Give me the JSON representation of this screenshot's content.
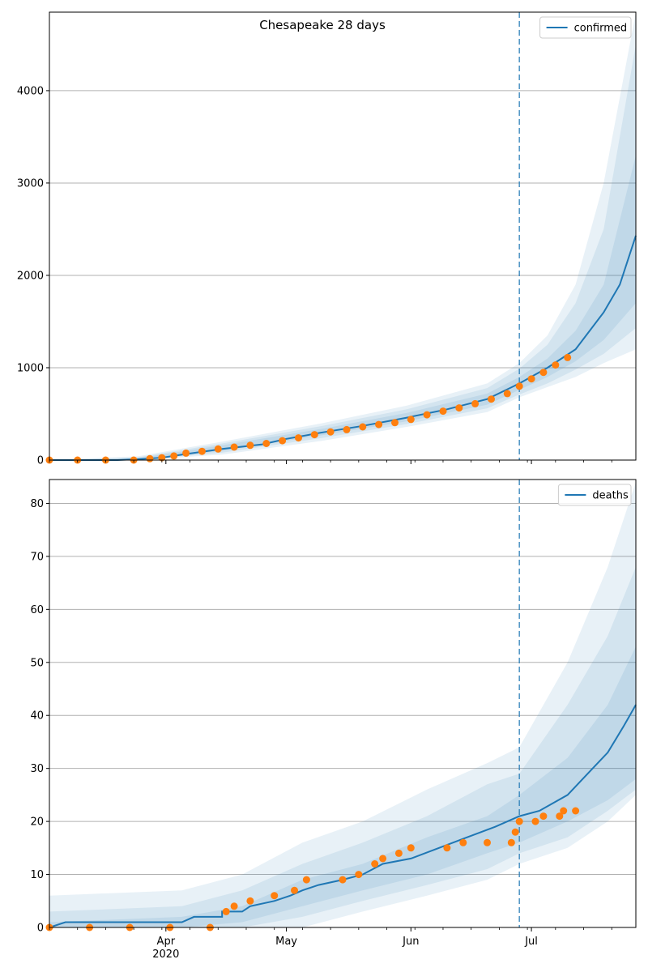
{
  "figure": {
    "title": "Chesapeake 28 days"
  },
  "colors": {
    "model": "#1f77b4",
    "observed": "#ff7f0e",
    "band": "#1f77b4",
    "grid": "#b0b0b0",
    "forecast_line": "#1f77b4"
  },
  "chart_data": [
    {
      "type": "line",
      "name": "confirmed-panel",
      "legend": [
        "confirmed"
      ],
      "legend_position": "top-right",
      "grid": "horizontal",
      "x_axis": {
        "type": "date",
        "range": [
          "2020-03-03",
          "2020-07-27"
        ],
        "ticks": [
          {
            "date": "2020-04-01",
            "label": "Apr"
          },
          {
            "date": "2020-05-01",
            "label": "May"
          },
          {
            "date": "2020-06-01",
            "label": "Jun"
          },
          {
            "date": "2020-07-01",
            "label": "Jul"
          }
        ],
        "year_label": "2020",
        "show_tick_labels": false
      },
      "y_axis": {
        "range": [
          0,
          4850
        ],
        "ticks": [
          0,
          1000,
          2000,
          3000,
          4000
        ]
      },
      "forecast_start": "2020-06-28",
      "series": [
        {
          "name": "confirmed",
          "kind": "model-median",
          "points": [
            [
              "2020-03-03",
              0
            ],
            [
              "2020-03-20",
              0
            ],
            [
              "2020-03-25",
              10
            ],
            [
              "2020-03-31",
              25
            ],
            [
              "2020-04-05",
              60
            ],
            [
              "2020-04-15",
              120
            ],
            [
              "2020-04-25",
              170
            ],
            [
              "2020-05-01",
              230
            ],
            [
              "2020-05-10",
              300
            ],
            [
              "2020-05-20",
              370
            ],
            [
              "2020-05-31",
              460
            ],
            [
              "2020-06-10",
              550
            ],
            [
              "2020-06-20",
              660
            ],
            [
              "2020-06-28",
              830
            ],
            [
              "2020-07-05",
              1000
            ],
            [
              "2020-07-12",
              1200
            ],
            [
              "2020-07-19",
              1600
            ],
            [
              "2020-07-23",
              1900
            ],
            [
              "2020-07-27",
              2430
            ]
          ]
        },
        {
          "name": "bands",
          "kind": "model-intervals",
          "levels": [
            {
              "points": [
                [
                  "2020-03-03",
                  0,
                  0
                ],
                [
                  "2020-03-25",
                  0,
                  20
                ],
                [
                  "2020-04-15",
                  100,
                  160
                ],
                [
                  "2020-05-10",
                  270,
                  340
                ],
                [
                  "2020-05-31",
                  420,
                  510
                ],
                [
                  "2020-06-20",
                  600,
                  720
                ],
                [
                  "2020-06-28",
                  760,
                  900
                ],
                [
                  "2020-07-05",
                  900,
                  1100
                ],
                [
                  "2020-07-12",
                  1070,
                  1400
                ],
                [
                  "2020-07-19",
                  1300,
                  1900
                ],
                [
                  "2020-07-27",
                  1700,
                  3300
                ]
              ]
            },
            {
              "points": [
                [
                  "2020-03-03",
                  0,
                  0
                ],
                [
                  "2020-03-25",
                  0,
                  30
                ],
                [
                  "2020-04-15",
                  80,
                  180
                ],
                [
                  "2020-05-10",
                  240,
                  370
                ],
                [
                  "2020-05-31",
                  390,
                  550
                ],
                [
                  "2020-06-20",
                  560,
                  780
                ],
                [
                  "2020-06-28",
                  710,
                  990
                ],
                [
                  "2020-07-05",
                  830,
                  1250
                ],
                [
                  "2020-07-12",
                  980,
                  1700
                ],
                [
                  "2020-07-19",
                  1150,
                  2500
                ],
                [
                  "2020-07-27",
                  1430,
                  4500
                ]
              ]
            },
            {
              "points": [
                [
                  "2020-03-03",
                  0,
                  0
                ],
                [
                  "2020-03-25",
                  0,
                  40
                ],
                [
                  "2020-04-15",
                  60,
                  200
                ],
                [
                  "2020-05-10",
                  210,
                  400
                ],
                [
                  "2020-05-31",
                  360,
                  590
                ],
                [
                  "2020-06-20",
                  520,
                  830
                ],
                [
                  "2020-06-28",
                  680,
                  1050
                ],
                [
                  "2020-07-05",
                  790,
                  1350
                ],
                [
                  "2020-07-12",
                  900,
                  1900
                ],
                [
                  "2020-07-19",
                  1050,
                  3000
                ],
                [
                  "2020-07-27",
                  1200,
                  4850
                ]
              ]
            }
          ]
        },
        {
          "name": "confirmed observed",
          "kind": "observed",
          "points": [
            [
              "2020-03-03",
              0
            ],
            [
              "2020-03-10",
              0
            ],
            [
              "2020-03-17",
              0
            ],
            [
              "2020-03-24",
              0
            ],
            [
              "2020-03-28",
              15
            ],
            [
              "2020-03-31",
              25
            ],
            [
              "2020-04-03",
              45
            ],
            [
              "2020-04-06",
              75
            ],
            [
              "2020-04-10",
              95
            ],
            [
              "2020-04-14",
              120
            ],
            [
              "2020-04-18",
              140
            ],
            [
              "2020-04-22",
              160
            ],
            [
              "2020-04-26",
              180
            ],
            [
              "2020-04-30",
              210
            ],
            [
              "2020-05-04",
              240
            ],
            [
              "2020-05-08",
              275
            ],
            [
              "2020-05-12",
              305
            ],
            [
              "2020-05-16",
              330
            ],
            [
              "2020-05-20",
              360
            ],
            [
              "2020-05-24",
              385
            ],
            [
              "2020-05-28",
              405
            ],
            [
              "2020-06-01",
              440
            ],
            [
              "2020-06-05",
              490
            ],
            [
              "2020-06-09",
              530
            ],
            [
              "2020-06-13",
              565
            ],
            [
              "2020-06-17",
              610
            ],
            [
              "2020-06-21",
              660
            ],
            [
              "2020-06-25",
              720
            ],
            [
              "2020-06-28",
              800
            ],
            [
              "2020-07-01",
              880
            ],
            [
              "2020-07-04",
              950
            ],
            [
              "2020-07-07",
              1030
            ],
            [
              "2020-07-10",
              1110
            ]
          ]
        }
      ]
    },
    {
      "type": "line",
      "name": "deaths-panel",
      "legend": [
        "deaths"
      ],
      "legend_position": "top-right",
      "grid": "horizontal",
      "x_axis": {
        "type": "date",
        "range": [
          "2020-03-03",
          "2020-07-27"
        ],
        "ticks": [
          {
            "date": "2020-04-01",
            "label": "Apr"
          },
          {
            "date": "2020-05-01",
            "label": "May"
          },
          {
            "date": "2020-06-01",
            "label": "Jun"
          },
          {
            "date": "2020-07-01",
            "label": "Jul"
          }
        ],
        "year_label": "2020",
        "show_tick_labels": true
      },
      "y_axis": {
        "range": [
          0,
          84.5
        ],
        "ticks": [
          0,
          10,
          20,
          30,
          40,
          50,
          60,
          70,
          80
        ]
      },
      "forecast_start": "2020-06-28",
      "series": [
        {
          "name": "deaths",
          "kind": "model-median",
          "points": [
            [
              "2020-03-03",
              0
            ],
            [
              "2020-03-07",
              1
            ],
            [
              "2020-04-05",
              1
            ],
            [
              "2020-04-08",
              2
            ],
            [
              "2020-04-15",
              2
            ],
            [
              "2020-04-15",
              3
            ],
            [
              "2020-04-20",
              3
            ],
            [
              "2020-04-22",
              4
            ],
            [
              "2020-04-28",
              5
            ],
            [
              "2020-05-02",
              6
            ],
            [
              "2020-05-05",
              7
            ],
            [
              "2020-05-09",
              8
            ],
            [
              "2020-05-15",
              9
            ],
            [
              "2020-05-20",
              10
            ],
            [
              "2020-05-25",
              12
            ],
            [
              "2020-06-01",
              13
            ],
            [
              "2020-06-08",
              15
            ],
            [
              "2020-06-15",
              17
            ],
            [
              "2020-06-22",
              19
            ],
            [
              "2020-06-28",
              21
            ],
            [
              "2020-07-03",
              22
            ],
            [
              "2020-07-10",
              25
            ],
            [
              "2020-07-15",
              29
            ],
            [
              "2020-07-20",
              33
            ],
            [
              "2020-07-24",
              38
            ],
            [
              "2020-07-27",
              42
            ]
          ]
        },
        {
          "name": "bands",
          "kind": "model-intervals",
          "levels": [
            {
              "points": [
                [
                  "2020-03-03",
                  0,
                  1
                ],
                [
                  "2020-04-05",
                  0,
                  2
                ],
                [
                  "2020-04-20",
                  1,
                  4
                ],
                [
                  "2020-05-05",
                  4,
                  9
                ],
                [
                  "2020-05-20",
                  7,
                  12
                ],
                [
                  "2020-06-05",
                  10,
                  17
                ],
                [
                  "2020-06-20",
                  14,
                  21
                ],
                [
                  "2020-06-28",
                  16,
                  25
                ],
                [
                  "2020-07-10",
                  20,
                  32
                ],
                [
                  "2020-07-20",
                  24,
                  42
                ],
                [
                  "2020-07-27",
                  28,
                  53
                ]
              ]
            },
            {
              "points": [
                [
                  "2020-03-03",
                  0,
                  3
                ],
                [
                  "2020-04-05",
                  0,
                  4
                ],
                [
                  "2020-04-20",
                  0,
                  7
                ],
                [
                  "2020-05-05",
                  2,
                  12
                ],
                [
                  "2020-05-20",
                  5,
                  16
                ],
                [
                  "2020-06-05",
                  8,
                  21
                ],
                [
                  "2020-06-20",
                  11,
                  27
                ],
                [
                  "2020-06-28",
                  14,
                  29
                ],
                [
                  "2020-07-10",
                  17,
                  42
                ],
                [
                  "2020-07-20",
                  22,
                  55
                ],
                [
                  "2020-07-27",
                  26,
                  68
                ]
              ]
            },
            {
              "points": [
                [
                  "2020-03-03",
                  0,
                  6
                ],
                [
                  "2020-04-05",
                  0,
                  7
                ],
                [
                  "2020-04-20",
                  0,
                  10
                ],
                [
                  "2020-05-05",
                  0,
                  16
                ],
                [
                  "2020-05-20",
                  3,
                  20
                ],
                [
                  "2020-06-05",
                  6,
                  26
                ],
                [
                  "2020-06-20",
                  9,
                  31
                ],
                [
                  "2020-06-28",
                  12,
                  34
                ],
                [
                  "2020-07-10",
                  15,
                  50
                ],
                [
                  "2020-07-20",
                  20,
                  68
                ],
                [
                  "2020-07-27",
                  25,
                  84
                ]
              ]
            }
          ]
        },
        {
          "name": "deaths observed",
          "kind": "observed",
          "points": [
            [
              "2020-03-03",
              0
            ],
            [
              "2020-03-13",
              0
            ],
            [
              "2020-03-23",
              0
            ],
            [
              "2020-04-02",
              0
            ],
            [
              "2020-04-12",
              0
            ],
            [
              "2020-04-16",
              3
            ],
            [
              "2020-04-18",
              4
            ],
            [
              "2020-04-22",
              5
            ],
            [
              "2020-04-28",
              6
            ],
            [
              "2020-05-03",
              7
            ],
            [
              "2020-05-06",
              9
            ],
            [
              "2020-05-15",
              9
            ],
            [
              "2020-05-19",
              10
            ],
            [
              "2020-05-23",
              12
            ],
            [
              "2020-05-25",
              13
            ],
            [
              "2020-05-29",
              14
            ],
            [
              "2020-06-01",
              15
            ],
            [
              "2020-06-10",
              15
            ],
            [
              "2020-06-14",
              16
            ],
            [
              "2020-06-20",
              16
            ],
            [
              "2020-06-26",
              16
            ],
            [
              "2020-06-27",
              18
            ],
            [
              "2020-06-28",
              20
            ],
            [
              "2020-07-02",
              20
            ],
            [
              "2020-07-04",
              21
            ],
            [
              "2020-07-08",
              21
            ],
            [
              "2020-07-09",
              22
            ],
            [
              "2020-07-12",
              22
            ]
          ]
        }
      ]
    }
  ]
}
